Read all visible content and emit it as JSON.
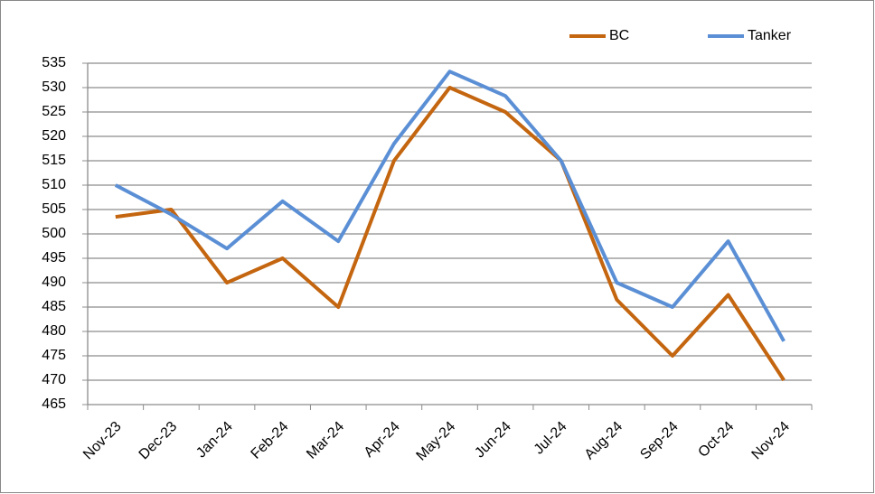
{
  "chart_data": {
    "type": "line",
    "categories": [
      "Nov-23",
      "Dec-23",
      "Jan-24",
      "Feb-24",
      "Mar-24",
      "Apr-24",
      "May-24",
      "Jun-24",
      "Jul-24",
      "Aug-24",
      "Sep-24",
      "Oct-24",
      "Nov-24"
    ],
    "series": [
      {
        "name": "BC",
        "color": "#c4650f",
        "values": [
          503.5,
          505,
          490,
          495,
          485,
          515,
          530,
          525,
          515,
          486.5,
          475,
          487.5,
          470
        ]
      },
      {
        "name": "Tanker",
        "color": "#5b8fd5",
        "values": [
          510,
          504,
          497,
          506.7,
          498.5,
          518.5,
          533.3,
          528.3,
          515,
          490,
          485,
          498.5,
          478
        ]
      }
    ],
    "ylim": [
      465,
      535
    ],
    "yticks": [
      465,
      470,
      475,
      480,
      485,
      490,
      495,
      500,
      505,
      510,
      515,
      520,
      525,
      530,
      535
    ],
    "grid": true,
    "legend": "top-right"
  }
}
